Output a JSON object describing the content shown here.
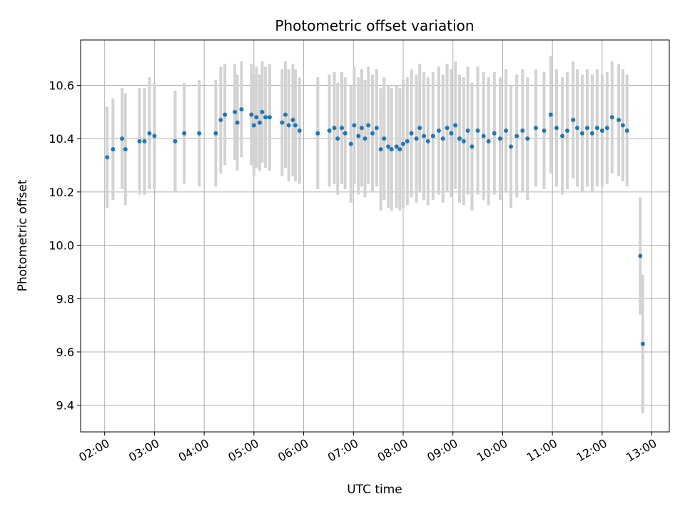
{
  "chart_data": {
    "type": "scatter",
    "title": "Photometric offset variation",
    "xlabel": "UTC time",
    "ylabel": "Photometric offset",
    "xlim": [
      "01:31",
      "13:21"
    ],
    "ylim": [
      9.3,
      10.77
    ],
    "x_ticks": [
      "02:00",
      "03:00",
      "04:00",
      "05:00",
      "06:00",
      "07:00",
      "08:00",
      "09:00",
      "10:00",
      "11:00",
      "12:00",
      "13:00"
    ],
    "y_ticks": [
      "9.4",
      "9.6",
      "9.8",
      "10.0",
      "10.2",
      "10.4",
      "10.6"
    ],
    "grid": true,
    "colors": {
      "points": "#1f77b4",
      "errorbars": "#d3d3d3",
      "grid": "#b0b0b0"
    },
    "series": [
      {
        "x": [
          "02:03",
          "02:10",
          "02:21",
          "02:25",
          "02:42",
          "02:48",
          "02:54",
          "03:00",
          "03:25",
          "03:36",
          "03:54",
          "04:14",
          "04:20",
          "04:25",
          "04:37",
          "04:40",
          "04:45",
          "04:57",
          "05:00",
          "05:03",
          "05:07",
          "05:10",
          "05:14",
          "05:19",
          "05:34",
          "05:38",
          "05:42",
          "05:47",
          "05:50",
          "05:55",
          "06:17",
          "06:31",
          "06:37",
          "06:41",
          "06:46",
          "06:50",
          "06:57",
          "07:01",
          "07:06",
          "07:10",
          "07:14",
          "07:18",
          "07:23",
          "07:28",
          "07:33",
          "07:37",
          "07:42",
          "07:46",
          "07:52",
          "07:56",
          "08:00",
          "08:05",
          "08:10",
          "08:16",
          "08:20",
          "08:25",
          "08:30",
          "08:36",
          "08:43",
          "08:48",
          "08:53",
          "08:58",
          "09:03",
          "09:08",
          "09:13",
          "09:18",
          "09:23",
          "09:30",
          "09:37",
          "09:43",
          "09:50",
          "09:57",
          "10:04",
          "10:10",
          "10:17",
          "10:24",
          "10:30",
          "10:40",
          "10:50",
          "10:58",
          "11:05",
          "11:12",
          "11:18",
          "11:25",
          "11:30",
          "11:36",
          "11:42",
          "11:48",
          "11:54",
          "12:00",
          "12:06",
          "12:12",
          "12:20",
          "12:25",
          "12:30",
          "12:46",
          "12:49"
        ],
        "y": [
          10.33,
          10.36,
          10.4,
          10.36,
          10.39,
          10.39,
          10.42,
          10.41,
          10.39,
          10.42,
          10.42,
          10.42,
          10.47,
          10.49,
          10.5,
          10.46,
          10.51,
          10.49,
          10.45,
          10.48,
          10.46,
          10.5,
          10.48,
          10.48,
          10.46,
          10.49,
          10.45,
          10.47,
          10.45,
          10.43,
          10.42,
          10.43,
          10.44,
          10.4,
          10.44,
          10.42,
          10.38,
          10.45,
          10.41,
          10.44,
          10.4,
          10.45,
          10.42,
          10.44,
          10.36,
          10.4,
          10.37,
          10.36,
          10.37,
          10.36,
          10.38,
          10.39,
          10.42,
          10.4,
          10.44,
          10.41,
          10.39,
          10.41,
          10.43,
          10.4,
          10.44,
          10.42,
          10.45,
          10.4,
          10.39,
          10.43,
          10.37,
          10.43,
          10.41,
          10.39,
          10.42,
          10.4,
          10.43,
          10.37,
          10.41,
          10.43,
          10.4,
          10.44,
          10.43,
          10.49,
          10.44,
          10.41,
          10.43,
          10.47,
          10.44,
          10.42,
          10.44,
          10.42,
          10.44,
          10.43,
          10.44,
          10.48,
          10.47,
          10.45,
          10.43,
          9.96,
          9.63
        ],
        "err": [
          0.19,
          0.19,
          0.19,
          0.21,
          0.2,
          0.2,
          0.21,
          0.2,
          0.19,
          0.19,
          0.2,
          0.2,
          0.2,
          0.19,
          0.18,
          0.18,
          0.18,
          0.19,
          0.19,
          0.19,
          0.18,
          0.19,
          0.19,
          0.2,
          0.2,
          0.2,
          0.21,
          0.21,
          0.21,
          0.2,
          0.21,
          0.21,
          0.21,
          0.21,
          0.21,
          0.21,
          0.22,
          0.22,
          0.22,
          0.22,
          0.22,
          0.22,
          0.22,
          0.22,
          0.23,
          0.23,
          0.23,
          0.23,
          0.23,
          0.23,
          0.24,
          0.24,
          0.24,
          0.24,
          0.24,
          0.24,
          0.24,
          0.24,
          0.24,
          0.24,
          0.24,
          0.24,
          0.24,
          0.24,
          0.24,
          0.24,
          0.24,
          0.24,
          0.24,
          0.24,
          0.23,
          0.23,
          0.23,
          0.23,
          0.23,
          0.23,
          0.23,
          0.22,
          0.22,
          0.22,
          0.22,
          0.22,
          0.22,
          0.22,
          0.22,
          0.22,
          0.22,
          0.22,
          0.22,
          0.21,
          0.21,
          0.21,
          0.21,
          0.21,
          0.21,
          0.22,
          0.26
        ]
      }
    ]
  }
}
